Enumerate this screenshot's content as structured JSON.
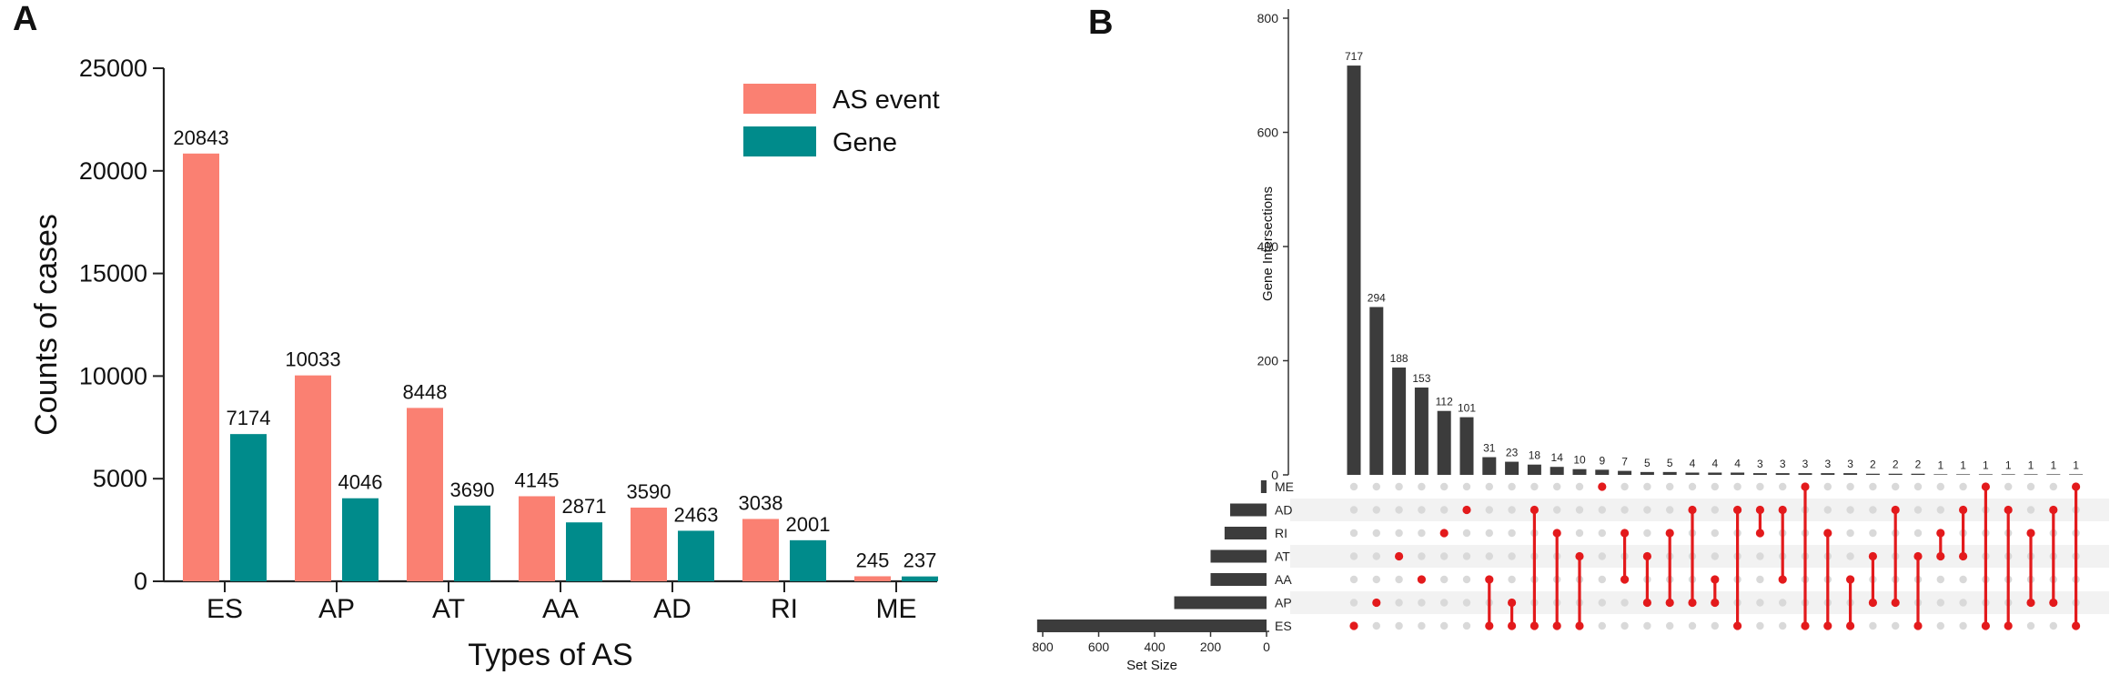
{
  "chart_data": [
    {
      "panel": "A",
      "type": "bar",
      "xlabel": "Types of AS",
      "ylabel": "Counts of cases",
      "ylim": [
        0,
        25000
      ],
      "yticks": [
        "0",
        "5000",
        "10000",
        "15000",
        "20000",
        "25000"
      ],
      "categories": [
        "ES",
        "AP",
        "AT",
        "AA",
        "AD",
        "RI",
        "ME"
      ],
      "series": [
        {
          "name": "AS event",
          "color": "#fa8072",
          "values": [
            20843,
            10033,
            8448,
            4145,
            3590,
            3038,
            245
          ]
        },
        {
          "name": "Gene",
          "color": "#008b8b",
          "values": [
            7174,
            4046,
            3690,
            2871,
            2463,
            2001,
            237
          ]
        }
      ],
      "legend_position": "top-right"
    },
    {
      "panel": "B",
      "type": "upset",
      "ylabel": "Gene Intersections",
      "ylim": [
        0,
        800
      ],
      "yticks": [
        "0",
        "200",
        "400",
        "600",
        "800"
      ],
      "set_size_label": "Set Size",
      "set_size_ticks": [
        "800",
        "600",
        "400",
        "200",
        "0"
      ],
      "sets": [
        "ME",
        "AD",
        "RI",
        "AT",
        "AA",
        "AP",
        "ES"
      ],
      "set_sizes": [
        20,
        130,
        150,
        200,
        200,
        330,
        820
      ],
      "intersections": [
        {
          "count": 717,
          "sets": [
            "ES"
          ]
        },
        {
          "count": 294,
          "sets": [
            "AP"
          ]
        },
        {
          "count": 188,
          "sets": [
            "AT"
          ]
        },
        {
          "count": 153,
          "sets": [
            "AA"
          ]
        },
        {
          "count": 112,
          "sets": [
            "RI"
          ]
        },
        {
          "count": 101,
          "sets": [
            "AD"
          ]
        },
        {
          "count": 31,
          "sets": [
            "AA",
            "ES"
          ]
        },
        {
          "count": 23,
          "sets": [
            "AP",
            "ES"
          ]
        },
        {
          "count": 18,
          "sets": [
            "AD",
            "ES"
          ]
        },
        {
          "count": 14,
          "sets": [
            "RI",
            "ES"
          ]
        },
        {
          "count": 10,
          "sets": [
            "AT",
            "ES"
          ]
        },
        {
          "count": 9,
          "sets": [
            "ME"
          ]
        },
        {
          "count": 7,
          "sets": [
            "RI",
            "AA"
          ]
        },
        {
          "count": 5,
          "sets": [
            "AT",
            "AP"
          ]
        },
        {
          "count": 5,
          "sets": [
            "RI",
            "AP"
          ]
        },
        {
          "count": 4,
          "sets": [
            "AD",
            "AP"
          ]
        },
        {
          "count": 4,
          "sets": [
            "AA",
            "AP"
          ]
        },
        {
          "count": 4,
          "sets": [
            "AD",
            "ES"
          ]
        },
        {
          "count": 3,
          "sets": [
            "AD",
            "RI"
          ]
        },
        {
          "count": 3,
          "sets": [
            "AD",
            "AA"
          ]
        },
        {
          "count": 3,
          "sets": [
            "ME",
            "ES"
          ]
        },
        {
          "count": 3,
          "sets": [
            "RI",
            "ES"
          ]
        },
        {
          "count": 3,
          "sets": [
            "AA",
            "ES"
          ]
        },
        {
          "count": 2,
          "sets": [
            "AT",
            "AP"
          ]
        },
        {
          "count": 2,
          "sets": [
            "AD",
            "AP"
          ]
        },
        {
          "count": 2,
          "sets": [
            "AT",
            "ES"
          ]
        },
        {
          "count": 1,
          "sets": [
            "RI",
            "AT"
          ]
        },
        {
          "count": 1,
          "sets": [
            "AD",
            "AT"
          ]
        },
        {
          "count": 1,
          "sets": [
            "ME",
            "ES"
          ]
        },
        {
          "count": 1,
          "sets": [
            "AD",
            "ES"
          ]
        },
        {
          "count": 1,
          "sets": [
            "RI",
            "AP"
          ]
        },
        {
          "count": 1,
          "sets": [
            "AD",
            "AP"
          ]
        },
        {
          "count": 1,
          "sets": [
            "ME",
            "ES"
          ]
        }
      ],
      "bar_color": "#3c3c3c",
      "dot_color": "#e31a1c",
      "inactive_dot_color": "#d9d9d9"
    }
  ],
  "panels": {
    "a": "A",
    "b": "B"
  }
}
